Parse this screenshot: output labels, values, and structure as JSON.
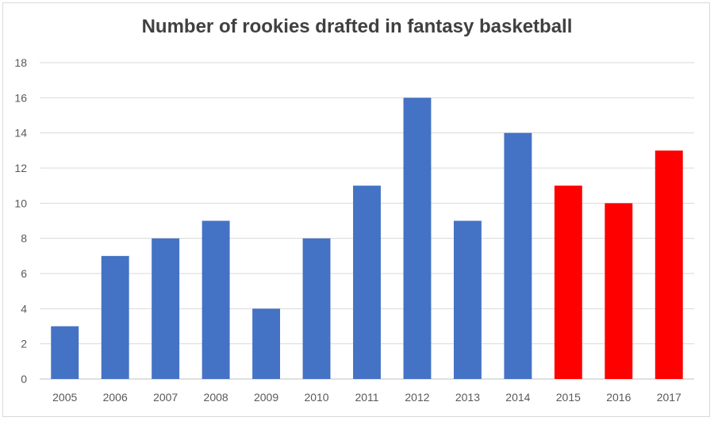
{
  "chart_data": {
    "type": "bar",
    "title": "Number of rookies drafted in fantasy basketball",
    "xlabel": "",
    "ylabel": "",
    "ylim": [
      0,
      18
    ],
    "yticks": [
      0,
      2,
      4,
      6,
      8,
      10,
      12,
      14,
      16,
      18
    ],
    "grid": true,
    "legend": "none",
    "categories": [
      "2005",
      "2006",
      "2007",
      "2008",
      "2009",
      "2010",
      "2011",
      "2012",
      "2013",
      "2014",
      "2015",
      "2016",
      "2017"
    ],
    "values": [
      3,
      7,
      8,
      9,
      4,
      8,
      11,
      16,
      9,
      14,
      11,
      10,
      13
    ],
    "bar_colors": [
      "#4472c4",
      "#4472c4",
      "#4472c4",
      "#4472c4",
      "#4472c4",
      "#4472c4",
      "#4472c4",
      "#4472c4",
      "#4472c4",
      "#4472c4",
      "#ff0000",
      "#ff0000",
      "#ff0000"
    ],
    "colors": {
      "gridline": "#d9d9d9",
      "axis_line": "#bfbfbf",
      "title": "#404040",
      "tick_text": "#595959"
    }
  }
}
